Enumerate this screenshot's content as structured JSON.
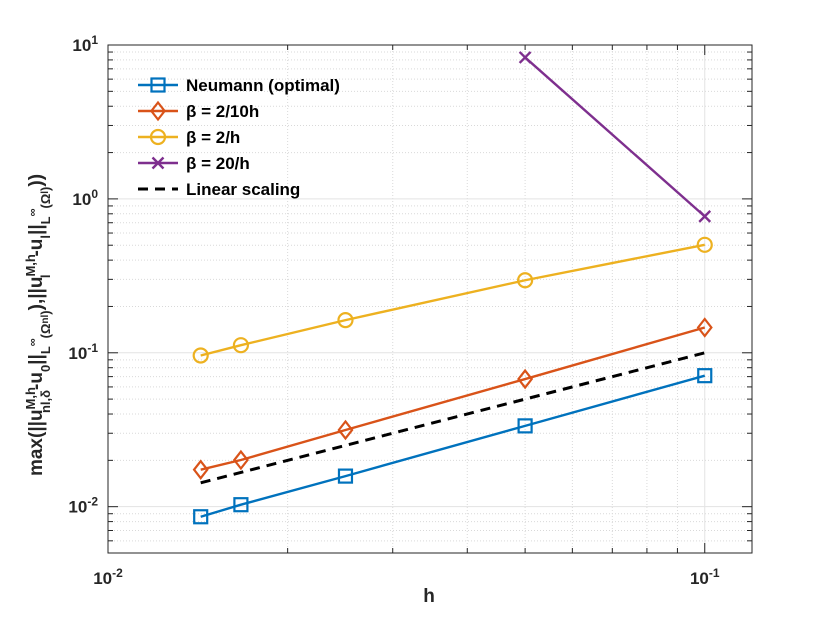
{
  "chart_data": {
    "type": "line",
    "scale": "loglog",
    "xlabel": "h",
    "ylabel": "max(||u",
    "ylabel_parts": {
      "t1": "max(||u",
      "sup1": "M,h",
      "sub1": "nl,δ",
      "t2": "-u",
      "sub2": "0",
      "t3": "||",
      "sub3": "L",
      "sup3": "∞",
      "sub3b": "(Ω",
      "sub3c": "nl",
      "t4": "),||u",
      "sup4": "M,h",
      "sub4": "l",
      "t5": "-u",
      "sub5": "l",
      "t6": "||",
      "sub6": "L",
      "sup6": "∞",
      "sub6b": "(Ω",
      "sub6c": "l",
      "t7": "))"
    },
    "xlim": [
      0.01,
      0.12
    ],
    "ylim": [
      0.005,
      10
    ],
    "x_ticks": [
      {
        "value": 0.01,
        "base": "10",
        "exp": "-2"
      },
      {
        "value": 0.1,
        "base": "10",
        "exp": "-1"
      }
    ],
    "y_ticks": [
      {
        "value": 0.01,
        "base": "10",
        "exp": "-2"
      },
      {
        "value": 0.1,
        "base": "10",
        "exp": "-1"
      },
      {
        "value": 1,
        "base": "10",
        "exp": "0"
      },
      {
        "value": 10,
        "base": "10",
        "exp": "1"
      }
    ],
    "grid": true,
    "legend_position": "top-left",
    "series": [
      {
        "name": "Neumann (optimal)",
        "color": "#0072BD",
        "marker": "square",
        "dashed": false,
        "x": [
          0.0143,
          0.0167,
          0.025,
          0.05,
          0.1
        ],
        "y": [
          0.0086,
          0.0103,
          0.0158,
          0.0335,
          0.071
        ]
      },
      {
        "name": "β = 2/10h",
        "color": "#D95319",
        "marker": "diamond",
        "dashed": false,
        "x": [
          0.0143,
          0.0167,
          0.025,
          0.05,
          0.1
        ],
        "y": [
          0.0174,
          0.0201,
          0.0315,
          0.0675,
          0.146
        ]
      },
      {
        "name": "β = 2/h",
        "color": "#EDB120",
        "marker": "circle",
        "dashed": false,
        "x": [
          0.0143,
          0.0167,
          0.025,
          0.05,
          0.1
        ],
        "y": [
          0.096,
          0.112,
          0.163,
          0.296,
          0.503
        ]
      },
      {
        "name": "β = 20/h",
        "color": "#7E2F8E",
        "marker": "x",
        "dashed": false,
        "x": [
          0.05,
          0.1
        ],
        "y": [
          8.3,
          0.77
        ]
      },
      {
        "name": "Linear scaling",
        "color": "#000000",
        "marker": "none",
        "dashed": true,
        "x": [
          0.0143,
          0.1
        ],
        "y": [
          0.0143,
          0.1
        ]
      }
    ]
  }
}
